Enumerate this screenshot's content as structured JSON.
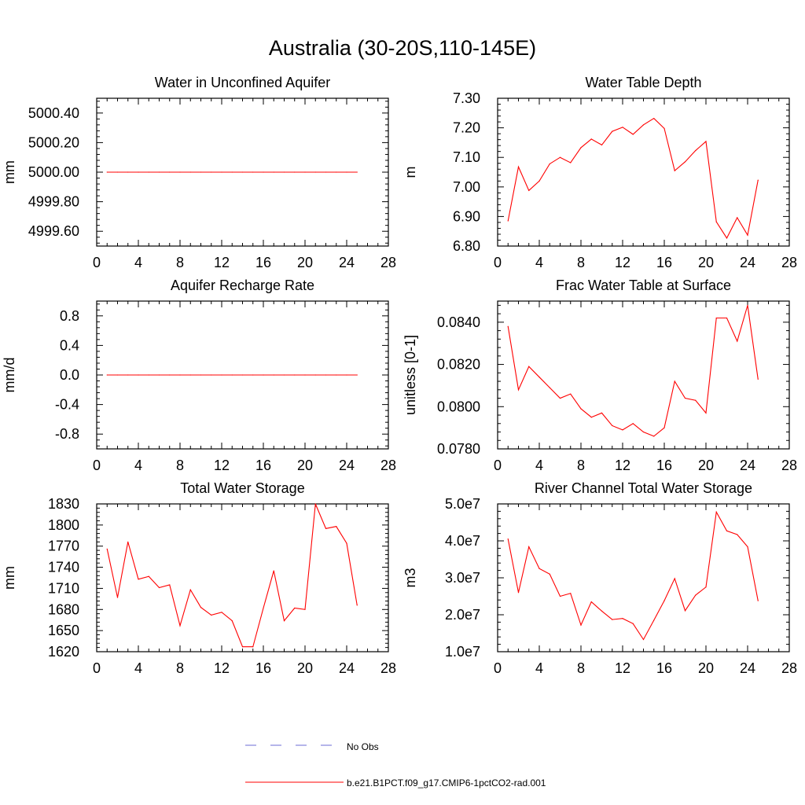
{
  "main_title": "Australia (30-20S,110-145E)",
  "colors": {
    "series": "#ff0000",
    "obs": "#6b6bd6",
    "axis": "#000000"
  },
  "legend": [
    {
      "label": "No Obs",
      "style": "dashed",
      "color": "#6b6bd6"
    },
    {
      "label": "b.e21.B1PCT.f09_g17.CMIP6-1pctCO2-rad.001",
      "style": "solid",
      "color": "#ff0000"
    }
  ],
  "chart_data": [
    {
      "type": "line",
      "title": "Water in Unconfined Aquifer",
      "ylabel": "mm",
      "xlim": [
        0,
        28
      ],
      "ylim": [
        5000.5,
        4999.5
      ],
      "xticks": [
        "0",
        "4",
        "8",
        "12",
        "16",
        "20",
        "24",
        "28"
      ],
      "yticks": [
        {
          "v": 5000.4,
          "label": "5000.40"
        },
        {
          "v": 5000.2,
          "label": "5000.20"
        },
        {
          "v": 5000.0,
          "label": "5000.00"
        },
        {
          "v": 4999.8,
          "label": "4999.80"
        },
        {
          "v": 4999.6,
          "label": "4999.60"
        }
      ],
      "series": [
        {
          "x": [
            1,
            2,
            3,
            4,
            5,
            6,
            7,
            8,
            9,
            10,
            11,
            12,
            13,
            14,
            15,
            16,
            17,
            18,
            19,
            20,
            21,
            22,
            23,
            24,
            25
          ],
          "values": [
            5000,
            5000,
            5000,
            5000,
            5000,
            5000,
            5000,
            5000,
            5000,
            5000,
            5000,
            5000,
            5000,
            5000,
            5000,
            5000,
            5000,
            5000,
            5000,
            5000,
            5000,
            5000,
            5000,
            5000,
            5000
          ]
        }
      ]
    },
    {
      "type": "line",
      "title": "Water Table Depth",
      "ylabel": "m",
      "xlim": [
        0,
        28
      ],
      "ylim": [
        7.3,
        6.8
      ],
      "xticks": [
        "0",
        "4",
        "8",
        "12",
        "16",
        "20",
        "24",
        "28"
      ],
      "yticks": [
        {
          "v": 7.3,
          "label": "7.30"
        },
        {
          "v": 7.2,
          "label": "7.20"
        },
        {
          "v": 7.1,
          "label": "7.10"
        },
        {
          "v": 7.0,
          "label": "7.00"
        },
        {
          "v": 6.9,
          "label": "6.90"
        },
        {
          "v": 6.8,
          "label": "6.80"
        }
      ],
      "series": [
        {
          "x": [
            1,
            2,
            3,
            4,
            5,
            6,
            7,
            8,
            9,
            10,
            11,
            12,
            13,
            14,
            15,
            16,
            17,
            18,
            19,
            20,
            21,
            22,
            23,
            24,
            25
          ],
          "values": [
            6.885,
            7.068,
            6.988,
            7.02,
            7.078,
            7.1,
            7.082,
            7.133,
            7.162,
            7.142,
            7.188,
            7.202,
            7.178,
            7.21,
            7.232,
            7.198,
            7.055,
            7.085,
            7.123,
            7.154,
            6.882,
            6.827,
            6.896,
            6.837,
            7.023
          ]
        }
      ]
    },
    {
      "type": "line",
      "title": "Aquifer Recharge Rate",
      "ylabel": "mm/d",
      "xlim": [
        0,
        28
      ],
      "ylim": [
        1.0,
        -1.0
      ],
      "xticks": [
        "0",
        "4",
        "8",
        "12",
        "16",
        "20",
        "24",
        "28"
      ],
      "yticks": [
        {
          "v": 0.8,
          "label": "0.8"
        },
        {
          "v": 0.4,
          "label": "0.4"
        },
        {
          "v": 0.0,
          "label": "0.0"
        },
        {
          "v": -0.4,
          "label": "-0.4"
        },
        {
          "v": -0.8,
          "label": "-0.8"
        }
      ],
      "series": [
        {
          "x": [
            1,
            2,
            3,
            4,
            5,
            6,
            7,
            8,
            9,
            10,
            11,
            12,
            13,
            14,
            15,
            16,
            17,
            18,
            19,
            20,
            21,
            22,
            23,
            24,
            25
          ],
          "values": [
            0,
            0,
            0,
            0,
            0,
            0,
            0,
            0,
            0,
            0,
            0,
            0,
            0,
            0,
            0,
            0,
            0,
            0,
            0,
            0,
            0,
            0,
            0,
            0,
            0
          ]
        }
      ]
    },
    {
      "type": "line",
      "title": "Frac Water Table at Surface",
      "ylabel": "unitless [0-1]",
      "xlim": [
        0,
        28
      ],
      "ylim": [
        0.085,
        0.078
      ],
      "xticks": [
        "0",
        "4",
        "8",
        "12",
        "16",
        "20",
        "24",
        "28"
      ],
      "yticks": [
        {
          "v": 0.084,
          "label": "0.0840"
        },
        {
          "v": 0.082,
          "label": "0.0820"
        },
        {
          "v": 0.08,
          "label": "0.0800"
        },
        {
          "v": 0.078,
          "label": "0.0780"
        }
      ],
      "series": [
        {
          "x": [
            1,
            2,
            3,
            4,
            5,
            6,
            7,
            8,
            9,
            10,
            11,
            12,
            13,
            14,
            15,
            16,
            17,
            18,
            19,
            20,
            21,
            22,
            23,
            24,
            25
          ],
          "values": [
            0.0838,
            0.0808,
            0.0819,
            0.0814,
            0.0809,
            0.0804,
            0.0806,
            0.0799,
            0.0795,
            0.0797,
            0.0791,
            0.0789,
            0.0792,
            0.0788,
            0.0786,
            0.079,
            0.0812,
            0.0804,
            0.0803,
            0.0797,
            0.0842,
            0.0842,
            0.0831,
            0.0848,
            0.0813
          ]
        }
      ]
    },
    {
      "type": "line",
      "title": "Total Water Storage",
      "ylabel": "mm",
      "xlim": [
        0,
        28
      ],
      "ylim": [
        1830,
        1620
      ],
      "xticks": [
        "0",
        "4",
        "8",
        "12",
        "16",
        "20",
        "24",
        "28"
      ],
      "yticks": [
        {
          "v": 1830,
          "label": "1830"
        },
        {
          "v": 1800,
          "label": "1800"
        },
        {
          "v": 1770,
          "label": "1770"
        },
        {
          "v": 1740,
          "label": "1740"
        },
        {
          "v": 1710,
          "label": "1710"
        },
        {
          "v": 1680,
          "label": "1680"
        },
        {
          "v": 1650,
          "label": "1650"
        },
        {
          "v": 1620,
          "label": "1620"
        }
      ],
      "series": [
        {
          "x": [
            1,
            2,
            3,
            4,
            5,
            6,
            7,
            8,
            9,
            10,
            11,
            12,
            13,
            14,
            15,
            16,
            17,
            18,
            19,
            20,
            21,
            22,
            23,
            24,
            25
          ],
          "values": [
            1766,
            1697,
            1776,
            1723,
            1727,
            1711,
            1715,
            1657,
            1708,
            1683,
            1672,
            1676,
            1664,
            1627,
            1627,
            1682,
            1735,
            1664,
            1682,
            1680,
            1830,
            1795,
            1798,
            1774,
            1686
          ]
        }
      ]
    },
    {
      "type": "line",
      "title": "River Channel Total Water Storage",
      "ylabel": "m3",
      "xlim": [
        0,
        28
      ],
      "ylim": [
        50000000,
        10000000
      ],
      "xticks": [
        "0",
        "4",
        "8",
        "12",
        "16",
        "20",
        "24",
        "28"
      ],
      "yticks": [
        {
          "v": 50000000,
          "label": "5.0e7"
        },
        {
          "v": 40000000,
          "label": "4.0e7"
        },
        {
          "v": 30000000,
          "label": "3.0e7"
        },
        {
          "v": 20000000,
          "label": "2.0e7"
        },
        {
          "v": 10000000,
          "label": "1.0e7"
        }
      ],
      "series": [
        {
          "x": [
            1,
            2,
            3,
            4,
            5,
            6,
            7,
            8,
            9,
            10,
            11,
            12,
            13,
            14,
            15,
            16,
            17,
            18,
            19,
            20,
            21,
            22,
            23,
            24,
            25
          ],
          "values": [
            40500000,
            26000000,
            38400000,
            32500000,
            31000000,
            25000000,
            25800000,
            17200000,
            23500000,
            21000000,
            18700000,
            19000000,
            17600000,
            13300000,
            18500000,
            23800000,
            29800000,
            21100000,
            25300000,
            27500000,
            47800000,
            42700000,
            41700000,
            38400000,
            23800000
          ]
        }
      ]
    }
  ]
}
